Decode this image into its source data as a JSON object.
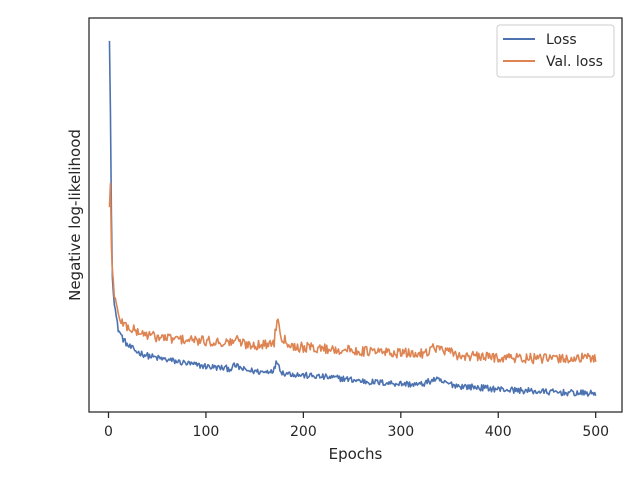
{
  "chart_data": {
    "type": "line",
    "title": "",
    "xlabel": "Epochs",
    "ylabel": "Negative log-likelihood",
    "xlim": [
      -20,
      527
    ],
    "x_ticks": [
      0,
      100,
      200,
      300,
      400,
      500
    ],
    "y_ticks": [],
    "y_tick_labels_shown": false,
    "ylim": [
      0,
      1
    ],
    "grid": false,
    "legend_position": "top-right",
    "series": [
      {
        "name": "Loss",
        "color": "#4c72b0",
        "points": [
          [
            1,
            0.942
          ],
          [
            2,
            0.76
          ],
          [
            3,
            0.5
          ],
          [
            4,
            0.34
          ],
          [
            6,
            0.28
          ],
          [
            8,
            0.24
          ],
          [
            10,
            0.21
          ],
          [
            15,
            0.185
          ],
          [
            20,
            0.168
          ],
          [
            30,
            0.152
          ],
          [
            40,
            0.143
          ],
          [
            50,
            0.137
          ],
          [
            70,
            0.128
          ],
          [
            90,
            0.119
          ],
          [
            110,
            0.113
          ],
          [
            125,
            0.11
          ],
          [
            130,
            0.118
          ],
          [
            140,
            0.106
          ],
          [
            160,
            0.101
          ],
          [
            170,
            0.108
          ],
          [
            173,
            0.13
          ],
          [
            178,
            0.1
          ],
          [
            200,
            0.093
          ],
          [
            220,
            0.089
          ],
          [
            240,
            0.085
          ],
          [
            255,
            0.08
          ],
          [
            270,
            0.076
          ],
          [
            300,
            0.072
          ],
          [
            320,
            0.069
          ],
          [
            335,
            0.083
          ],
          [
            345,
            0.074
          ],
          [
            360,
            0.066
          ],
          [
            380,
            0.062
          ],
          [
            400,
            0.058
          ],
          [
            420,
            0.055
          ],
          [
            440,
            0.052
          ],
          [
            460,
            0.05
          ],
          [
            480,
            0.048
          ],
          [
            500,
            0.047
          ]
        ],
        "noise_amplitude": 0.008
      },
      {
        "name": "Val. loss",
        "color": "#dd8452",
        "points": [
          [
            1,
            0.52
          ],
          [
            2,
            0.58
          ],
          [
            3,
            0.42
          ],
          [
            4,
            0.36
          ],
          [
            6,
            0.3
          ],
          [
            8,
            0.27
          ],
          [
            10,
            0.245
          ],
          [
            15,
            0.225
          ],
          [
            20,
            0.215
          ],
          [
            30,
            0.203
          ],
          [
            40,
            0.196
          ],
          [
            50,
            0.19
          ],
          [
            70,
            0.185
          ],
          [
            90,
            0.181
          ],
          [
            110,
            0.178
          ],
          [
            125,
            0.176
          ],
          [
            130,
            0.185
          ],
          [
            140,
            0.172
          ],
          [
            160,
            0.17
          ],
          [
            170,
            0.178
          ],
          [
            173,
            0.24
          ],
          [
            178,
            0.19
          ],
          [
            190,
            0.166
          ],
          [
            220,
            0.161
          ],
          [
            250,
            0.156
          ],
          [
            280,
            0.152
          ],
          [
            300,
            0.149
          ],
          [
            320,
            0.147
          ],
          [
            335,
            0.165
          ],
          [
            345,
            0.155
          ],
          [
            360,
            0.143
          ],
          [
            380,
            0.14
          ],
          [
            400,
            0.139
          ],
          [
            420,
            0.137
          ],
          [
            440,
            0.135
          ],
          [
            460,
            0.135
          ],
          [
            480,
            0.136
          ],
          [
            500,
            0.137
          ]
        ],
        "noise_amplitude": 0.013
      }
    ]
  }
}
